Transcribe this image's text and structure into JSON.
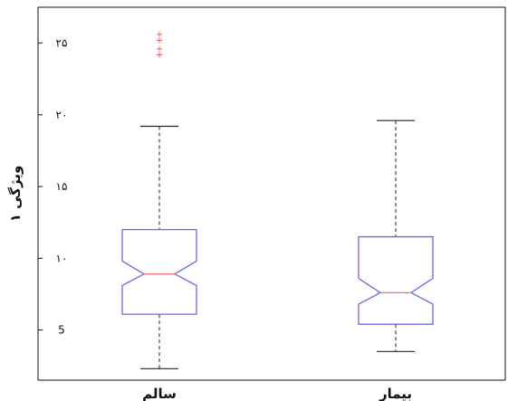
{
  "chart_data": {
    "type": "boxplot",
    "title": "",
    "xlabel": "",
    "ylabel": "ویژگی ۱",
    "ylim": [
      1.5,
      27.5
    ],
    "yticks": [
      5,
      10,
      15,
      20,
      25
    ],
    "ytick_labels": [
      "5",
      "۱۰",
      "۱۵",
      "۲۰",
      "۲۵"
    ],
    "grid": false,
    "categories": [
      "سالم",
      "بیمار"
    ],
    "boxes": [
      {
        "category": "سالم",
        "whisker_low": 2.3,
        "q1": 6.1,
        "median": 8.9,
        "q3": 12.0,
        "whisker_high": 19.2,
        "notch_low": 8.1,
        "notch_high": 9.8,
        "outliers": [
          24.2,
          24.6,
          25.2,
          25.6
        ]
      },
      {
        "category": "بیمار",
        "whisker_low": 3.5,
        "q1": 5.4,
        "median": 7.6,
        "q3": 11.5,
        "whisker_high": 19.6,
        "notch_low": 6.8,
        "notch_high": 8.6,
        "outliers": []
      }
    ],
    "colors": {
      "box": "#6a6ae8",
      "median": "#ff6a6a",
      "whisker": "#222222",
      "outlier": "#ff4a4a",
      "axis": "#111111"
    }
  }
}
